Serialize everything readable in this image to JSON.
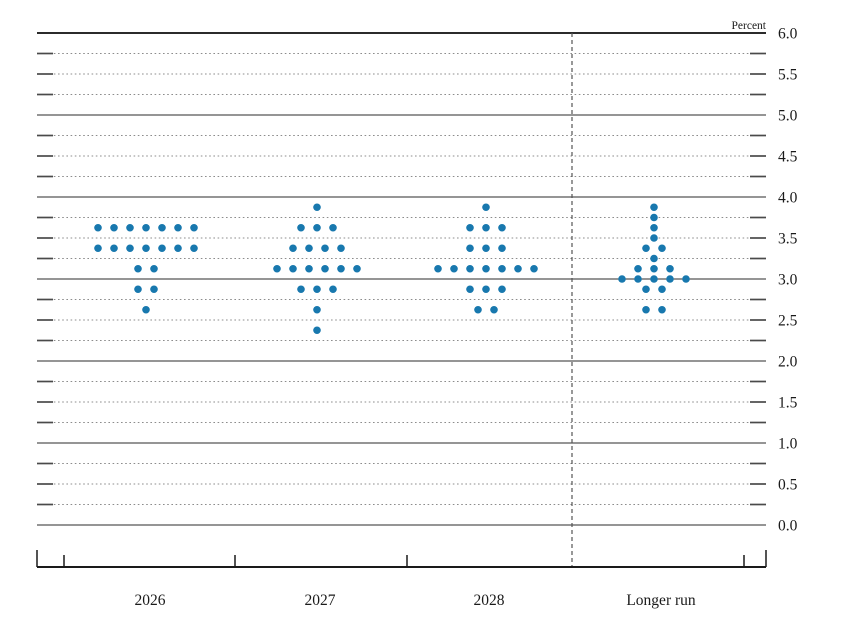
{
  "chart_data": {
    "type": "scatter",
    "variant": "fomc-dot-plot",
    "ylabel": "Percent",
    "categories": [
      "2026",
      "2027",
      "2028",
      "Longer run"
    ],
    "y_axis_labels": [
      "6.0",
      "5.5",
      "5.0",
      "4.5",
      "4.0",
      "3.5",
      "3.0",
      "2.5",
      "2.0",
      "1.5",
      "1.0",
      "0.5",
      "0.0"
    ],
    "ylim": [
      0.0,
      6.0
    ],
    "y_minor_step": 0.25,
    "y_label_step": 0.5,
    "grid": "solid horizontal lines at integer percents, dotted lines at quarter points, short solid tick caps at both ends of dotted lines",
    "separator": "vertical dashed line between 2028 and Longer run",
    "legend_position": "none",
    "dot_color": "#1878ae",
    "series": [
      {
        "category": "2026",
        "dots": [
          {
            "value": 3.625,
            "count": 7
          },
          {
            "value": 3.375,
            "count": 7
          },
          {
            "value": 3.125,
            "count": 2
          },
          {
            "value": 2.875,
            "count": 2
          },
          {
            "value": 2.625,
            "count": 1
          }
        ]
      },
      {
        "category": "2027",
        "dots": [
          {
            "value": 3.875,
            "count": 1
          },
          {
            "value": 3.625,
            "count": 3
          },
          {
            "value": 3.375,
            "count": 4
          },
          {
            "value": 3.125,
            "count": 6
          },
          {
            "value": 2.875,
            "count": 3
          },
          {
            "value": 2.625,
            "count": 1
          },
          {
            "value": 2.375,
            "count": 1
          }
        ]
      },
      {
        "category": "2028",
        "dots": [
          {
            "value": 3.875,
            "count": 1
          },
          {
            "value": 3.625,
            "count": 3
          },
          {
            "value": 3.375,
            "count": 3
          },
          {
            "value": 3.125,
            "count": 7
          },
          {
            "value": 2.875,
            "count": 3
          },
          {
            "value": 2.625,
            "count": 2
          }
        ]
      },
      {
        "category": "Longer run",
        "dots": [
          {
            "value": 3.875,
            "count": 1
          },
          {
            "value": 3.75,
            "count": 1
          },
          {
            "value": 3.625,
            "count": 1
          },
          {
            "value": 3.5,
            "count": 1
          },
          {
            "value": 3.375,
            "count": 2
          },
          {
            "value": 3.25,
            "count": 1
          },
          {
            "value": 3.125,
            "count": 3
          },
          {
            "value": 3.0,
            "count": 5
          },
          {
            "value": 2.875,
            "count": 2
          },
          {
            "value": 2.625,
            "count": 2
          }
        ]
      }
    ]
  }
}
